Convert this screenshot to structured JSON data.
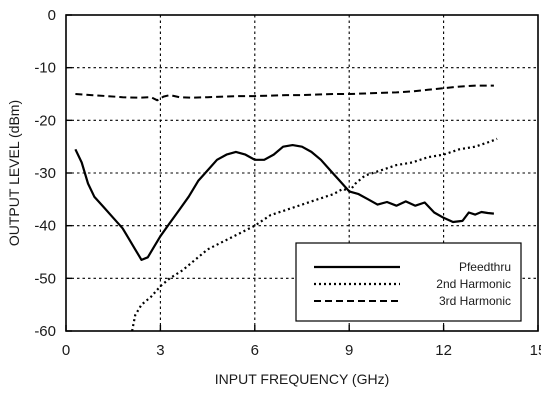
{
  "chart_data": {
    "type": "line",
    "xlabel": "INPUT FREQUENCY (GHz)",
    "ylabel": "OUTPUT LEVEL (dBm)",
    "xlim": [
      0,
      15
    ],
    "ylim": [
      -60,
      0
    ],
    "xticks": [
      0,
      3,
      6,
      9,
      12,
      15
    ],
    "yticks": [
      0,
      -10,
      -20,
      -30,
      -40,
      -50,
      -60
    ],
    "grid": true,
    "legend_position": "bottom-right",
    "series": [
      {
        "name": "Pfeedthru",
        "style": "solid",
        "x": [
          0.3,
          0.5,
          0.7,
          0.9,
          1.2,
          1.5,
          1.8,
          2.0,
          2.2,
          2.4,
          2.6,
          2.8,
          3.0,
          3.3,
          3.6,
          3.9,
          4.2,
          4.5,
          4.8,
          5.1,
          5.4,
          5.7,
          6.0,
          6.3,
          6.6,
          6.9,
          7.2,
          7.5,
          7.8,
          8.1,
          8.4,
          8.7,
          9.0,
          9.3,
          9.6,
          9.9,
          10.2,
          10.5,
          10.8,
          11.1,
          11.4,
          11.7,
          12.0,
          12.3,
          12.6,
          12.8,
          13.0,
          13.2,
          13.4,
          13.6
        ],
        "y": [
          -25.5,
          -28,
          -32,
          -34.5,
          -36.5,
          -38.5,
          -40.5,
          -42.5,
          -44.5,
          -46.5,
          -46,
          -44,
          -42,
          -39.5,
          -37,
          -34.5,
          -31.5,
          -29.5,
          -27.5,
          -26.5,
          -26,
          -26.5,
          -27.5,
          -27.5,
          -26.5,
          -25,
          -24.7,
          -25,
          -26,
          -27.5,
          -29.5,
          -31.5,
          -33.5,
          -34,
          -35,
          -36,
          -35.5,
          -36.2,
          -35.4,
          -36.2,
          -35.6,
          -37.5,
          -38.5,
          -39.3,
          -39.1,
          -37.5,
          -37.9,
          -37.4,
          -37.6,
          -37.7
        ]
      },
      {
        "name": "2nd Harmonic",
        "style": "dotted",
        "x": [
          2.1,
          2.2,
          2.4,
          2.7,
          3.0,
          3.3,
          3.7,
          4.1,
          4.5,
          5.0,
          5.5,
          6.0,
          6.5,
          7.0,
          7.5,
          8.0,
          8.5,
          8.8,
          9.0,
          9.2,
          9.5,
          10.0,
          10.5,
          11.0,
          11.5,
          12.0,
          12.5,
          13.0,
          13.5,
          13.7
        ],
        "y": [
          -60,
          -57,
          -55,
          -53.5,
          -51.5,
          -50,
          -48.5,
          -46.5,
          -44.5,
          -43,
          -41.5,
          -40,
          -38,
          -37,
          -36,
          -35,
          -34,
          -33,
          -33.5,
          -32,
          -30.5,
          -29.5,
          -28.5,
          -28,
          -27,
          -26.5,
          -25.5,
          -25,
          -24,
          -23.5
        ]
      },
      {
        "name": "3rd Harmonic",
        "style": "dashed",
        "x": [
          0.3,
          0.8,
          1.3,
          1.8,
          2.3,
          2.7,
          2.9,
          3.1,
          3.3,
          3.6,
          4.0,
          4.5,
          5.0,
          5.5,
          6.0,
          6.5,
          7.0,
          7.5,
          8.0,
          8.5,
          9.0,
          9.5,
          10.0,
          10.5,
          11.0,
          11.5,
          12.0,
          12.5,
          13.0,
          13.6
        ],
        "y": [
          -15,
          -15.2,
          -15.4,
          -15.6,
          -15.7,
          -15.6,
          -16.2,
          -15.5,
          -15.2,
          -15.6,
          -15.7,
          -15.6,
          -15.5,
          -15.4,
          -15.4,
          -15.3,
          -15.2,
          -15.2,
          -15.1,
          -15.0,
          -15.0,
          -14.9,
          -14.8,
          -14.7,
          -14.5,
          -14.2,
          -13.9,
          -13.6,
          -13.4,
          -13.4
        ]
      }
    ]
  }
}
